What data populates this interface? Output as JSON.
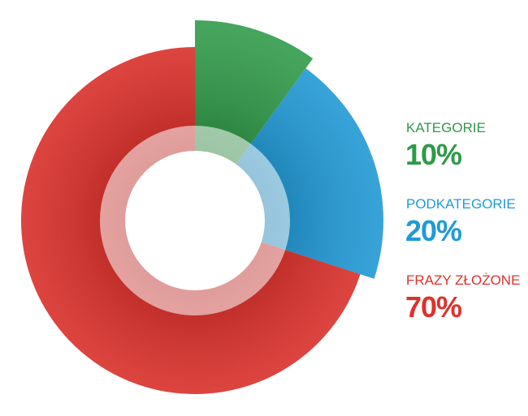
{
  "chart_data": {
    "type": "pie",
    "categories": [
      "KATEGORIE",
      "PODKATEGORIE",
      "FRAZY ZŁOŻONE"
    ],
    "values": [
      10,
      20,
      70
    ],
    "value_labels": [
      "10%",
      "20%",
      "70%"
    ],
    "colors": [
      "#2e9a47",
      "#1f9ad8",
      "#e0302b"
    ]
  }
}
